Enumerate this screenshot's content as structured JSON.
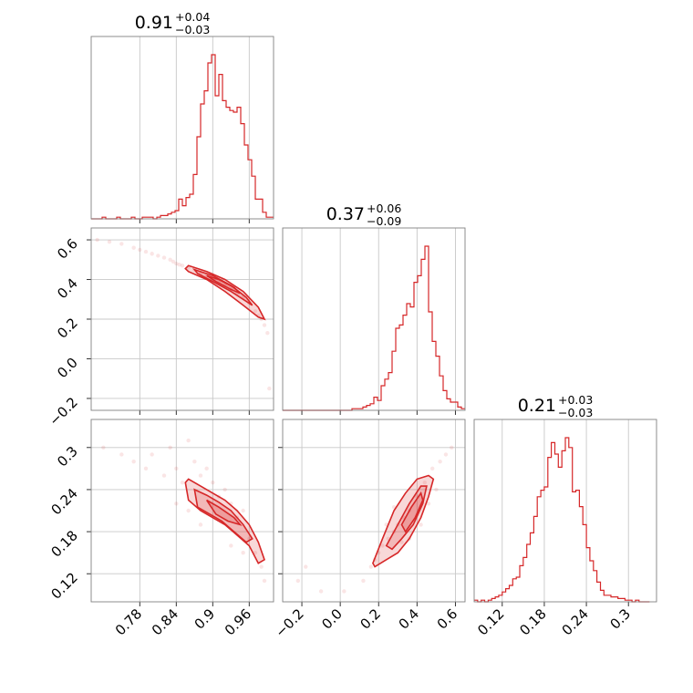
{
  "chart_data": [
    {
      "type": "histogram",
      "panel": "diag-0",
      "title": {
        "value": "0.91",
        "plus": "+0.04",
        "minus": "−0.03"
      },
      "xlim": [
        0.7,
        1.0
      ],
      "ticks": [
        0.78,
        0.84,
        0.9,
        0.96
      ],
      "x": [
        0.7,
        0.706,
        0.712,
        0.718,
        0.724,
        0.73,
        0.736,
        0.742,
        0.748,
        0.754,
        0.76,
        0.766,
        0.772,
        0.778,
        0.784,
        0.79,
        0.796,
        0.802,
        0.808,
        0.814,
        0.82,
        0.826,
        0.832,
        0.838,
        0.844,
        0.85,
        0.856,
        0.862,
        0.868,
        0.874,
        0.88,
        0.886,
        0.892,
        0.898,
        0.904,
        0.91,
        0.916,
        0.922,
        0.928,
        0.934,
        0.94,
        0.946,
        0.952,
        0.958,
        0.964,
        0.97,
        0.976,
        0.982,
        0.988,
        0.994
      ],
      "values": [
        0,
        0,
        0,
        0.01,
        0,
        0,
        0,
        0.01,
        0,
        0,
        0,
        0.01,
        0,
        0,
        0.01,
        0.01,
        0.01,
        0,
        0.01,
        0.02,
        0.02,
        0.03,
        0.04,
        0.05,
        0.12,
        0.08,
        0.13,
        0.15,
        0.27,
        0.5,
        0.7,
        0.78,
        0.95,
        1.0,
        0.75,
        0.88,
        0.72,
        0.68,
        0.66,
        0.65,
        0.68,
        0.58,
        0.45,
        0.36,
        0.26,
        0.12,
        0.12,
        0.04,
        0.01,
        0.01
      ]
    },
    {
      "type": "histogram",
      "panel": "diag-1",
      "title": {
        "value": "0.37",
        "plus": "+0.06",
        "minus": "−0.09"
      },
      "xlim": [
        -0.3,
        0.65
      ],
      "ticks": [
        -0.2,
        0.0,
        0.2,
        0.4,
        0.6
      ],
      "x": [
        -0.3,
        -0.281,
        -0.262,
        -0.243,
        -0.224,
        -0.205,
        -0.186,
        -0.167,
        -0.148,
        -0.129,
        -0.11,
        -0.091,
        -0.072,
        -0.053,
        -0.034,
        -0.015,
        0.004,
        0.023,
        0.042,
        0.061,
        0.08,
        0.099,
        0.118,
        0.137,
        0.156,
        0.175,
        0.194,
        0.213,
        0.232,
        0.251,
        0.27,
        0.289,
        0.308,
        0.327,
        0.346,
        0.365,
        0.384,
        0.403,
        0.422,
        0.441,
        0.46,
        0.479,
        0.498,
        0.517,
        0.536,
        0.555,
        0.574,
        0.593,
        0.612,
        0.631
      ],
      "values": [
        0,
        0,
        0,
        0,
        0,
        0,
        0,
        0,
        0,
        0,
        0,
        0,
        0,
        0,
        0,
        0,
        0,
        0,
        0,
        0.01,
        0.01,
        0.01,
        0.02,
        0.03,
        0.04,
        0.08,
        0.06,
        0.15,
        0.19,
        0.23,
        0.36,
        0.5,
        0.52,
        0.58,
        0.65,
        0.63,
        0.78,
        0.82,
        0.92,
        1.0,
        0.6,
        0.42,
        0.33,
        0.21,
        0.12,
        0.07,
        0.05,
        0.05,
        0.02,
        0.01
      ]
    },
    {
      "type": "histogram",
      "panel": "diag-2",
      "title": {
        "value": "0.21",
        "plus": "+0.03",
        "minus": "−0.03"
      },
      "xlim": [
        0.08,
        0.34
      ],
      "ticks": [
        0.12,
        0.18,
        0.24,
        0.3
      ],
      "x": [
        0.08,
        0.085,
        0.09,
        0.095,
        0.1,
        0.105,
        0.11,
        0.115,
        0.12,
        0.125,
        0.13,
        0.135,
        0.14,
        0.145,
        0.15,
        0.155,
        0.16,
        0.165,
        0.17,
        0.175,
        0.18,
        0.185,
        0.19,
        0.195,
        0.2,
        0.205,
        0.21,
        0.215,
        0.22,
        0.225,
        0.23,
        0.235,
        0.24,
        0.245,
        0.25,
        0.255,
        0.26,
        0.265,
        0.27,
        0.275,
        0.28,
        0.285,
        0.29,
        0.295,
        0.3,
        0.305,
        0.31,
        0.315,
        0.32,
        0.325
      ],
      "values": [
        0.01,
        0,
        0.01,
        0,
        0.01,
        0.02,
        0.03,
        0.04,
        0.06,
        0.08,
        0.1,
        0.14,
        0.15,
        0.22,
        0.27,
        0.35,
        0.42,
        0.52,
        0.64,
        0.68,
        0.7,
        0.88,
        0.97,
        0.9,
        0.82,
        0.92,
        1.0,
        0.94,
        0.67,
        0.68,
        0.58,
        0.47,
        0.33,
        0.25,
        0.19,
        0.12,
        0.07,
        0.04,
        0.04,
        0.03,
        0.03,
        0.02,
        0.02,
        0.01,
        0.01,
        0,
        0.01,
        0,
        0,
        0
      ]
    },
    {
      "type": "scatter",
      "panel": "pair-1-0",
      "xlim": [
        0.7,
        1.0
      ],
      "ylim": [
        -0.26,
        0.66
      ],
      "xticks": [
        0.78,
        0.84,
        0.9,
        0.96
      ],
      "yticks": [
        -0.2,
        0.0,
        0.2,
        0.4,
        0.6
      ],
      "samples": [
        [
          0.71,
          0.6
        ],
        [
          0.73,
          0.59
        ],
        [
          0.75,
          0.58
        ],
        [
          0.77,
          0.56
        ],
        [
          0.78,
          0.55
        ],
        [
          0.79,
          0.54
        ],
        [
          0.8,
          0.53
        ],
        [
          0.81,
          0.52
        ],
        [
          0.82,
          0.51
        ],
        [
          0.83,
          0.5
        ],
        [
          0.835,
          0.49
        ],
        [
          0.84,
          0.48
        ],
        [
          0.845,
          0.475
        ],
        [
          0.85,
          0.47
        ],
        [
          0.86,
          0.46
        ],
        [
          0.87,
          0.45
        ],
        [
          0.88,
          0.43
        ],
        [
          0.89,
          0.42
        ],
        [
          0.9,
          0.4
        ],
        [
          0.91,
          0.39
        ],
        [
          0.92,
          0.37
        ],
        [
          0.93,
          0.35
        ],
        [
          0.94,
          0.33
        ],
        [
          0.95,
          0.31
        ],
        [
          0.96,
          0.28
        ],
        [
          0.97,
          0.24
        ],
        [
          0.975,
          0.22
        ],
        [
          0.98,
          0.2
        ],
        [
          0.985,
          0.17
        ],
        [
          0.99,
          0.13
        ],
        [
          0.993,
          -0.15
        ]
      ],
      "contour_levels": [
        [
          [
            0.855,
            0.455
          ],
          [
            0.86,
            0.47
          ],
          [
            0.89,
            0.44
          ],
          [
            0.92,
            0.4
          ],
          [
            0.95,
            0.34
          ],
          [
            0.975,
            0.26
          ],
          [
            0.985,
            0.2
          ],
          [
            0.975,
            0.21
          ],
          [
            0.95,
            0.27
          ],
          [
            0.92,
            0.34
          ],
          [
            0.89,
            0.4
          ],
          [
            0.86,
            0.44
          ]
        ],
        [
          [
            0.87,
            0.45
          ],
          [
            0.9,
            0.42
          ],
          [
            0.93,
            0.37
          ],
          [
            0.955,
            0.31
          ],
          [
            0.965,
            0.27
          ],
          [
            0.955,
            0.29
          ],
          [
            0.93,
            0.34
          ],
          [
            0.9,
            0.39
          ],
          [
            0.875,
            0.43
          ]
        ],
        [
          [
            0.89,
            0.42
          ],
          [
            0.91,
            0.4
          ],
          [
            0.935,
            0.36
          ],
          [
            0.945,
            0.33
          ],
          [
            0.93,
            0.35
          ],
          [
            0.905,
            0.39
          ]
        ]
      ]
    },
    {
      "type": "scatter",
      "panel": "pair-2-0",
      "xlim": [
        0.7,
        1.0
      ],
      "ylim": [
        0.08,
        0.34
      ],
      "xticks": [
        0.78,
        0.84,
        0.9,
        0.96
      ],
      "yticks": [
        0.12,
        0.18,
        0.24,
        0.3
      ],
      "samples": [
        [
          0.72,
          0.3
        ],
        [
          0.75,
          0.29
        ],
        [
          0.77,
          0.28
        ],
        [
          0.79,
          0.27
        ],
        [
          0.8,
          0.29
        ],
        [
          0.82,
          0.26
        ],
        [
          0.83,
          0.3
        ],
        [
          0.84,
          0.27
        ],
        [
          0.85,
          0.25
        ],
        [
          0.86,
          0.31
        ],
        [
          0.87,
          0.28
        ],
        [
          0.88,
          0.26
        ],
        [
          0.89,
          0.27
        ],
        [
          0.9,
          0.25
        ],
        [
          0.91,
          0.23
        ],
        [
          0.92,
          0.24
        ],
        [
          0.93,
          0.22
        ],
        [
          0.94,
          0.2
        ],
        [
          0.95,
          0.21
        ],
        [
          0.96,
          0.17
        ],
        [
          0.97,
          0.15
        ],
        [
          0.98,
          0.13
        ],
        [
          0.985,
          0.11
        ],
        [
          0.88,
          0.19
        ],
        [
          0.86,
          0.21
        ],
        [
          0.84,
          0.22
        ],
        [
          0.95,
          0.15
        ],
        [
          0.93,
          0.16
        ]
      ],
      "contour_levels": [
        [
          [
            0.855,
            0.25
          ],
          [
            0.86,
            0.255
          ],
          [
            0.88,
            0.245
          ],
          [
            0.9,
            0.235
          ],
          [
            0.92,
            0.225
          ],
          [
            0.94,
            0.21
          ],
          [
            0.96,
            0.19
          ],
          [
            0.975,
            0.165
          ],
          [
            0.985,
            0.14
          ],
          [
            0.975,
            0.135
          ],
          [
            0.96,
            0.16
          ],
          [
            0.94,
            0.175
          ],
          [
            0.92,
            0.19
          ],
          [
            0.9,
            0.2
          ],
          [
            0.88,
            0.21
          ],
          [
            0.86,
            0.225
          ]
        ],
        [
          [
            0.87,
            0.24
          ],
          [
            0.89,
            0.232
          ],
          [
            0.91,
            0.222
          ],
          [
            0.93,
            0.21
          ],
          [
            0.95,
            0.19
          ],
          [
            0.965,
            0.17
          ],
          [
            0.955,
            0.165
          ],
          [
            0.935,
            0.18
          ],
          [
            0.915,
            0.195
          ],
          [
            0.895,
            0.205
          ],
          [
            0.875,
            0.215
          ]
        ],
        [
          [
            0.89,
            0.225
          ],
          [
            0.91,
            0.215
          ],
          [
            0.935,
            0.2
          ],
          [
            0.945,
            0.19
          ],
          [
            0.925,
            0.195
          ],
          [
            0.905,
            0.205
          ]
        ]
      ]
    },
    {
      "type": "scatter",
      "panel": "pair-2-1",
      "xlim": [
        -0.3,
        0.65
      ],
      "ylim": [
        0.08,
        0.34
      ],
      "xticks": [
        -0.2,
        0.0,
        0.2,
        0.4,
        0.6
      ],
      "yticks": [
        0.12,
        0.18,
        0.24,
        0.3
      ],
      "samples": [
        [
          -0.22,
          0.11
        ],
        [
          -0.18,
          0.13
        ],
        [
          -0.1,
          0.095
        ],
        [
          0.02,
          0.095
        ],
        [
          0.12,
          0.11
        ],
        [
          0.16,
          0.13
        ],
        [
          0.18,
          0.14
        ],
        [
          0.2,
          0.15
        ],
        [
          0.22,
          0.16
        ],
        [
          0.25,
          0.17
        ],
        [
          0.28,
          0.18
        ],
        [
          0.3,
          0.19
        ],
        [
          0.33,
          0.2
        ],
        [
          0.36,
          0.21
        ],
        [
          0.4,
          0.23
        ],
        [
          0.44,
          0.25
        ],
        [
          0.48,
          0.27
        ],
        [
          0.52,
          0.28
        ],
        [
          0.55,
          0.29
        ],
        [
          0.58,
          0.3
        ],
        [
          0.5,
          0.24
        ],
        [
          0.46,
          0.22
        ],
        [
          0.42,
          0.19
        ],
        [
          0.36,
          0.17
        ],
        [
          0.32,
          0.165
        ],
        [
          0.24,
          0.19
        ],
        [
          0.28,
          0.215
        ]
      ],
      "contour_levels": [
        [
          [
            0.18,
            0.13
          ],
          [
            0.17,
            0.135
          ],
          [
            0.22,
            0.17
          ],
          [
            0.28,
            0.21
          ],
          [
            0.34,
            0.235
          ],
          [
            0.4,
            0.255
          ],
          [
            0.46,
            0.26
          ],
          [
            0.485,
            0.255
          ],
          [
            0.46,
            0.23
          ],
          [
            0.42,
            0.2
          ],
          [
            0.36,
            0.17
          ],
          [
            0.3,
            0.15
          ],
          [
            0.24,
            0.14
          ]
        ],
        [
          [
            0.24,
            0.16
          ],
          [
            0.3,
            0.19
          ],
          [
            0.36,
            0.22
          ],
          [
            0.42,
            0.245
          ],
          [
            0.45,
            0.245
          ],
          [
            0.43,
            0.22
          ],
          [
            0.38,
            0.19
          ],
          [
            0.32,
            0.17
          ],
          [
            0.27,
            0.155
          ]
        ],
        [
          [
            0.32,
            0.19
          ],
          [
            0.37,
            0.215
          ],
          [
            0.42,
            0.235
          ],
          [
            0.43,
            0.225
          ],
          [
            0.39,
            0.2
          ],
          [
            0.34,
            0.18
          ]
        ]
      ]
    }
  ],
  "style": {
    "line_color": "#d62728",
    "grid": true
  }
}
